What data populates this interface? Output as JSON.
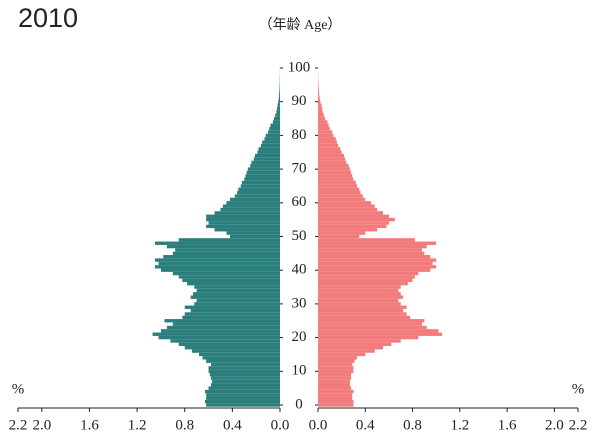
{
  "chart_data": {
    "type": "pyramid",
    "title": "2010",
    "y_label": "（年龄 Age）",
    "x_label": "%",
    "x": [
      0,
      1,
      2,
      3,
      4,
      5,
      6,
      7,
      8,
      9,
      10,
      11,
      12,
      13,
      14,
      15,
      16,
      17,
      18,
      19,
      20,
      21,
      22,
      23,
      24,
      25,
      26,
      27,
      28,
      29,
      30,
      31,
      32,
      33,
      34,
      35,
      36,
      37,
      38,
      39,
      40,
      41,
      42,
      43,
      44,
      45,
      46,
      47,
      48,
      49,
      50,
      51,
      52,
      53,
      54,
      55,
      56,
      57,
      58,
      59,
      60,
      61,
      62,
      63,
      64,
      65,
      66,
      67,
      68,
      69,
      70,
      71,
      72,
      73,
      74,
      75,
      76,
      77,
      78,
      79,
      80,
      81,
      82,
      83,
      84,
      85,
      86,
      87,
      88,
      89,
      90,
      91,
      92,
      93,
      94,
      95,
      96,
      97,
      98,
      99,
      100
    ],
    "series": [
      {
        "side": "left",
        "color": "#2a7f7d",
        "values": [
          0.62,
          0.63,
          0.62,
          0.62,
          0.63,
          0.6,
          0.58,
          0.57,
          0.58,
          0.59,
          0.6,
          0.6,
          0.58,
          0.62,
          0.65,
          0.68,
          0.74,
          0.8,
          0.85,
          0.92,
          1.02,
          1.07,
          1.0,
          0.95,
          0.9,
          0.97,
          0.82,
          0.8,
          0.75,
          0.8,
          0.72,
          0.7,
          0.75,
          0.73,
          0.7,
          0.72,
          0.78,
          0.82,
          0.85,
          0.9,
          1.0,
          1.05,
          1.02,
          1.05,
          0.98,
          0.9,
          0.88,
          0.95,
          1.05,
          0.85,
          0.42,
          0.45,
          0.55,
          0.62,
          0.6,
          0.62,
          0.62,
          0.55,
          0.5,
          0.48,
          0.45,
          0.42,
          0.38,
          0.36,
          0.35,
          0.33,
          0.32,
          0.3,
          0.29,
          0.28,
          0.27,
          0.25,
          0.24,
          0.22,
          0.21,
          0.19,
          0.18,
          0.16,
          0.15,
          0.13,
          0.12,
          0.1,
          0.09,
          0.08,
          0.06,
          0.05,
          0.04,
          0.03,
          0.025,
          0.02,
          0.015,
          0.01,
          0.008,
          0.006,
          0.004,
          0.003,
          0.002,
          0.002,
          0.001,
          0.001,
          0.001
        ]
      },
      {
        "side": "right",
        "color": "#f27b7c",
        "values": [
          0.3,
          0.3,
          0.29,
          0.29,
          0.3,
          0.28,
          0.27,
          0.27,
          0.28,
          0.28,
          0.3,
          0.3,
          0.29,
          0.31,
          0.33,
          0.4,
          0.48,
          0.55,
          0.62,
          0.7,
          0.85,
          1.05,
          1.02,
          0.92,
          0.88,
          0.9,
          0.78,
          0.75,
          0.72,
          0.75,
          0.7,
          0.68,
          0.72,
          0.7,
          0.68,
          0.7,
          0.76,
          0.8,
          0.82,
          0.85,
          0.95,
          1.0,
          0.97,
          1.0,
          0.95,
          0.9,
          0.88,
          0.92,
          1.0,
          0.82,
          0.35,
          0.4,
          0.5,
          0.58,
          0.6,
          0.65,
          0.6,
          0.55,
          0.5,
          0.48,
          0.45,
          0.4,
          0.38,
          0.36,
          0.35,
          0.33,
          0.32,
          0.3,
          0.29,
          0.28,
          0.27,
          0.26,
          0.24,
          0.23,
          0.22,
          0.2,
          0.19,
          0.17,
          0.16,
          0.15,
          0.13,
          0.12,
          0.1,
          0.09,
          0.08,
          0.06,
          0.05,
          0.04,
          0.035,
          0.03,
          0.02,
          0.015,
          0.01,
          0.008,
          0.006,
          0.004,
          0.003,
          0.002,
          0.002,
          0.001,
          0.001
        ]
      }
    ],
    "xlim": [
      0,
      2.2
    ],
    "xticks": [
      {
        "value": 0,
        "label": "0.0"
      },
      0.4,
      0.8,
      1.2,
      1.6,
      {
        "value": 2,
        "label": "2.0"
      },
      2.2
    ],
    "ylim": [
      0,
      100
    ],
    "yticks": [
      0,
      10,
      20,
      30,
      40,
      50,
      60,
      70,
      80,
      90,
      100
    ]
  }
}
